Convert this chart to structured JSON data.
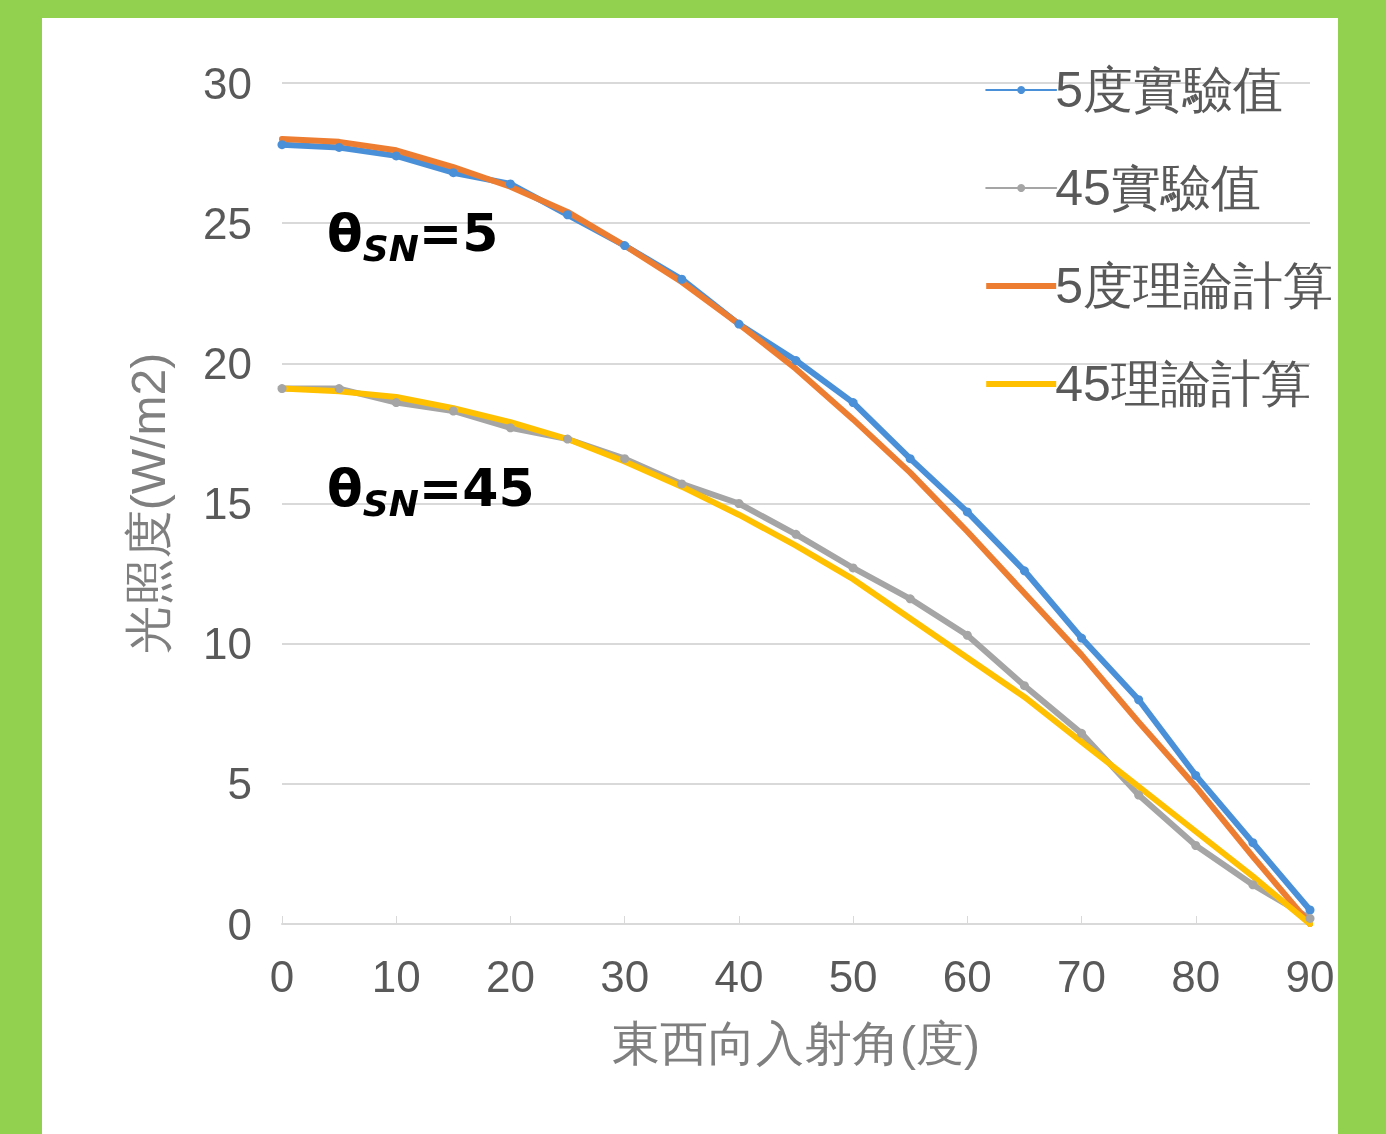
{
  "chart_data": {
    "type": "line",
    "xlabel": "東西向入射角(度)",
    "ylabel": "光照度(W/m2)",
    "x": [
      0,
      5,
      10,
      15,
      20,
      25,
      30,
      35,
      40,
      45,
      50,
      55,
      60,
      65,
      70,
      75,
      80,
      85,
      90
    ],
    "series": [
      {
        "name": "5度實驗值",
        "color": "#4a90d9",
        "marker": "circle",
        "values": [
          27.8,
          27.7,
          27.4,
          26.8,
          26.4,
          25.3,
          24.2,
          23.0,
          21.4,
          20.1,
          18.6,
          16.6,
          14.7,
          12.6,
          10.2,
          8.0,
          5.3,
          2.9,
          0.5
        ]
      },
      {
        "name": "45實驗值",
        "color": "#a5a5a5",
        "marker": "circle",
        "values": [
          19.1,
          19.1,
          18.6,
          18.3,
          17.7,
          17.3,
          16.6,
          15.7,
          15.0,
          13.9,
          12.7,
          11.6,
          10.3,
          8.5,
          6.8,
          4.6,
          2.8,
          1.4,
          0.2
        ]
      },
      {
        "name": "5度理論計算",
        "color": "#ed7d31",
        "marker": "none",
        "values": [
          28.0,
          27.9,
          27.6,
          27.0,
          26.3,
          25.4,
          24.2,
          22.9,
          21.4,
          19.8,
          18.0,
          16.1,
          14.0,
          11.8,
          9.6,
          7.2,
          4.9,
          2.4,
          0
        ]
      },
      {
        "name": "45理論計算",
        "color": "#ffc000",
        "marker": "none",
        "values": [
          19.1,
          19.0,
          18.8,
          18.4,
          17.9,
          17.3,
          16.5,
          15.6,
          14.6,
          13.5,
          12.3,
          10.9,
          9.5,
          8.1,
          6.5,
          4.9,
          3.3,
          1.7,
          0
        ]
      }
    ],
    "xlim": [
      0,
      90
    ],
    "xticks": [
      0,
      10,
      20,
      30,
      40,
      50,
      60,
      70,
      80,
      90
    ],
    "ylim": [
      0,
      30
    ],
    "yticks": [
      0,
      5,
      10,
      15,
      20,
      25,
      30
    ],
    "grid": "y",
    "legend": "top right",
    "line_style": "solid",
    "annotations": [
      "θ$_{SN}$=5",
      "θ$_{SN}$=45"
    ]
  }
}
